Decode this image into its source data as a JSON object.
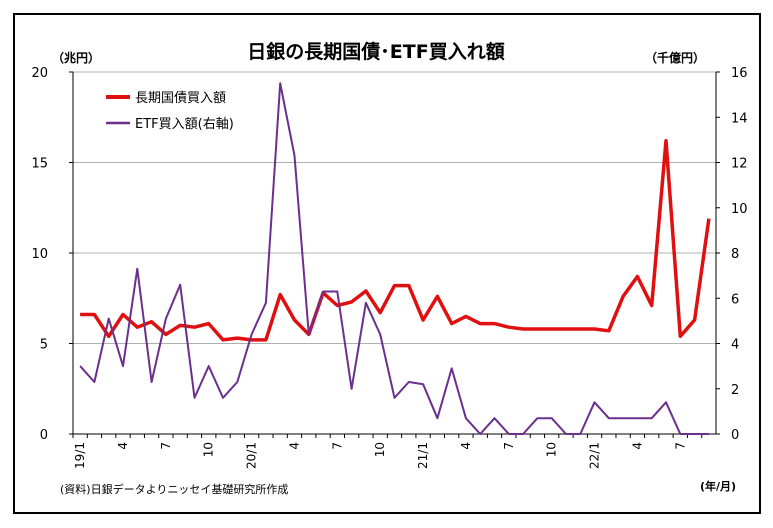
{
  "chart_data": {
    "type": "line",
    "title": "日銀の長期国債･ETF買入れ額",
    "ylabel_left": "（兆円）",
    "ylabel_right": "（千億円）",
    "xlabel": "(年/月)",
    "source": "(資料)日銀データよりニッセイ基礎研究所作成",
    "ylim_left": [
      0,
      20
    ],
    "yticks_left": [
      "0",
      "5",
      "10",
      "15",
      "20"
    ],
    "ylim_right": [
      0,
      16
    ],
    "yticks_right": [
      "0",
      "2",
      "4",
      "6",
      "8",
      "10",
      "12",
      "14",
      "16"
    ],
    "xtick_labels": [
      "19/1",
      "4",
      "7",
      "10",
      "20/1",
      "4",
      "7",
      "10",
      "21/1",
      "4",
      "7",
      "10",
      "22/1",
      "4",
      "7"
    ],
    "legend_position": "top-left",
    "x": [
      "19/1",
      "19/2",
      "19/3",
      "19/4",
      "19/5",
      "19/6",
      "19/7",
      "19/8",
      "19/9",
      "19/10",
      "19/11",
      "19/12",
      "20/1",
      "20/2",
      "20/3",
      "20/4",
      "20/5",
      "20/6",
      "20/7",
      "20/8",
      "20/9",
      "20/10",
      "20/11",
      "20/12",
      "21/1",
      "21/2",
      "21/3",
      "21/4",
      "21/5",
      "21/6",
      "21/7",
      "21/8",
      "21/9",
      "21/10",
      "21/11",
      "21/12",
      "22/1",
      "22/2",
      "22/3",
      "22/4",
      "22/5",
      "22/6",
      "22/7",
      "22/8",
      "22/9"
    ],
    "series": [
      {
        "name": "長期国債買入額",
        "axis": "left",
        "color": "#e01010",
        "values": [
          6.6,
          6.6,
          5.4,
          6.6,
          5.9,
          6.2,
          5.5,
          6.0,
          5.9,
          6.1,
          5.2,
          5.3,
          5.2,
          5.2,
          7.7,
          6.3,
          5.5,
          7.8,
          7.1,
          7.3,
          7.9,
          6.7,
          8.2,
          8.2,
          6.3,
          7.6,
          6.1,
          6.5,
          6.1,
          6.1,
          5.9,
          5.8,
          5.8,
          5.8,
          5.8,
          5.8,
          5.8,
          5.7,
          7.6,
          8.7,
          7.1,
          16.2,
          5.4,
          6.3,
          11.9
        ]
      },
      {
        "name": "ETF買入額(右軸)",
        "axis": "right",
        "color": "#6b2f8e",
        "values": [
          3.0,
          2.3,
          5.1,
          3.0,
          7.3,
          2.3,
          5.1,
          6.6,
          1.6,
          3.0,
          1.6,
          2.3,
          4.4,
          5.8,
          15.5,
          12.3,
          4.4,
          6.3,
          6.3,
          2.0,
          5.8,
          4.4,
          1.6,
          2.3,
          2.2,
          0.7,
          2.9,
          0.7,
          0.0,
          0.7,
          0.0,
          0.0,
          0.7,
          0.7,
          0.0,
          0.0,
          1.4,
          0.7,
          0.7,
          0.7,
          0.7,
          1.4,
          0.0,
          0.0,
          0.0
        ]
      }
    ]
  }
}
